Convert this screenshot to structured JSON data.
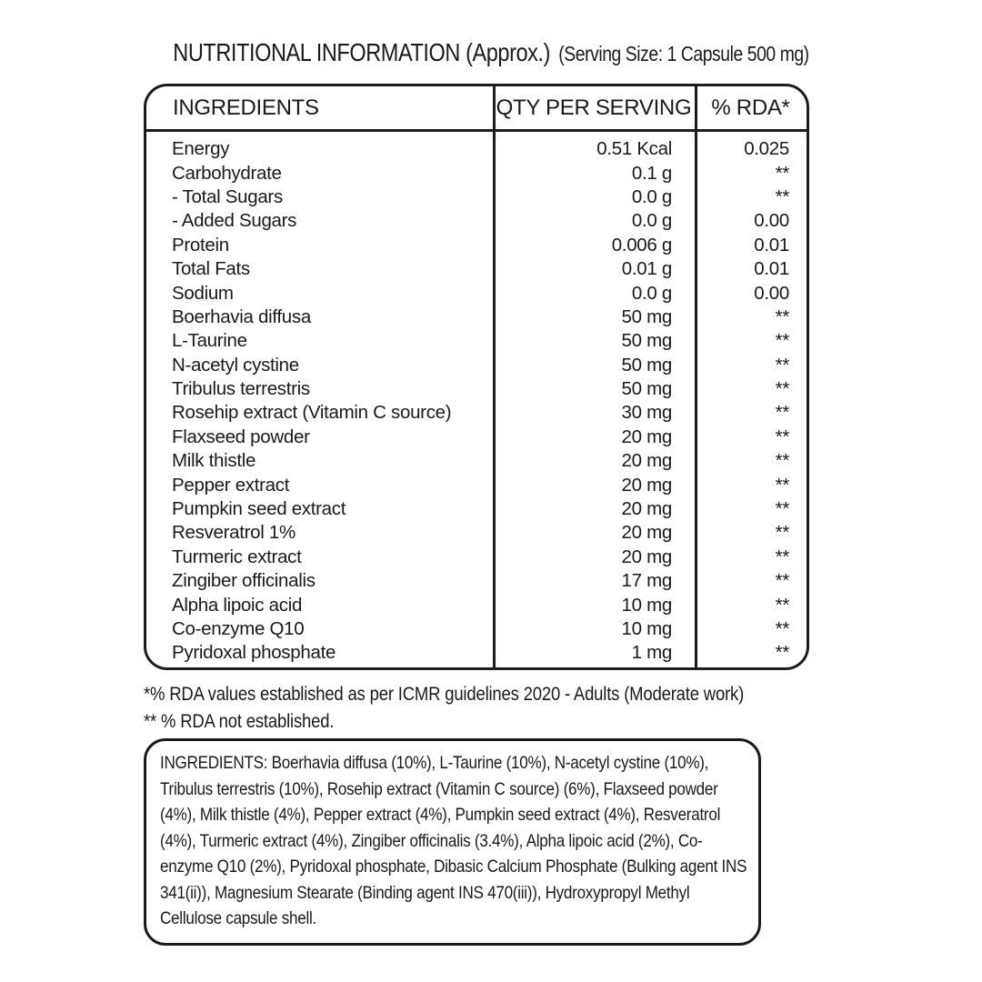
{
  "title": {
    "main": "NUTRITIONAL INFORMATION (Approx.)",
    "serving": "(Serving Size: 1 Capsule 500 mg)"
  },
  "table": {
    "headers": [
      "INGREDIENTS",
      "QTY PER SERVING",
      "% RDA*"
    ],
    "rows": [
      {
        "name": "Energy",
        "qty": "0.51 Kcal",
        "rda": "0.025"
      },
      {
        "name": "Carbohydrate",
        "qty": "0.1 g",
        "rda": "**"
      },
      {
        "name": "- Total Sugars",
        "qty": "0.0 g",
        "rda": "**"
      },
      {
        "name": "- Added Sugars",
        "qty": "0.0 g",
        "rda": "0.00"
      },
      {
        "name": "Protein",
        "qty": "0.006 g",
        "rda": "0.01"
      },
      {
        "name": "Total Fats",
        "qty": "0.01 g",
        "rda": "0.01"
      },
      {
        "name": "Sodium",
        "qty": "0.0 g",
        "rda": "0.00"
      },
      {
        "name": "Boerhavia diffusa",
        "qty": "50 mg",
        "rda": "**"
      },
      {
        "name": "L-Taurine",
        "qty": "50 mg",
        "rda": "**"
      },
      {
        "name": "N-acetyl cystine",
        "qty": "50 mg",
        "rda": "**"
      },
      {
        "name": "Tribulus terrestris",
        "qty": "50 mg",
        "rda": "**"
      },
      {
        "name": "Rosehip extract (Vitamin C source)",
        "qty": "30 mg",
        "rda": "**"
      },
      {
        "name": "Flaxseed powder",
        "qty": "20 mg",
        "rda": "**"
      },
      {
        "name": "Milk thistle",
        "qty": "20 mg",
        "rda": "**"
      },
      {
        "name": "Pepper extract",
        "qty": "20 mg",
        "rda": "**"
      },
      {
        "name": "Pumpkin seed extract",
        "qty": "20 mg",
        "rda": "**"
      },
      {
        "name": "Resveratrol 1%",
        "qty": "20 mg",
        "rda": "**"
      },
      {
        "name": "Turmeric extract",
        "qty": "20 mg",
        "rda": "**"
      },
      {
        "name": "Zingiber officinalis",
        "qty": "17 mg",
        "rda": "**"
      },
      {
        "name": "Alpha lipoic acid",
        "qty": "10 mg",
        "rda": "**"
      },
      {
        "name": "Co-enzyme Q10",
        "qty": "10 mg",
        "rda": "**"
      },
      {
        "name": "Pyridoxal phosphate",
        "qty": "1 mg",
        "rda": "**"
      }
    ]
  },
  "footnotes": [
    "*% RDA values established as per ICMR guidelines 2020 - Adults (Moderate work)",
    "** % RDA not established."
  ],
  "ingredients_box": {
    "text": "INGREDIENTS: Boerhavia diffusa (10%), L-Taurine (10%), N-acetyl cystine (10%), Tribulus terrestris (10%), Rosehip extract (Vitamin C source) (6%), Flaxseed powder (4%), Milk thistle (4%), Pepper extract (4%), Pumpkin seed extract (4%), Resveratrol (4%), Turmeric extract (4%), Zingiber officinalis (3.4%), Alpha lipoic acid (2%), Co-enzyme Q10 (2%), Pyridoxal phosphate, Dibasic Calcium Phosphate (Bulking agent INS 341(ii)), Magnesium Stearate (Binding agent INS 470(iii)), Hydroxypropyl Methyl Cellulose capsule shell."
  },
  "colors": {
    "text": "#1a1a1a",
    "border": "#1b1b1b",
    "background": "#ffffff"
  }
}
